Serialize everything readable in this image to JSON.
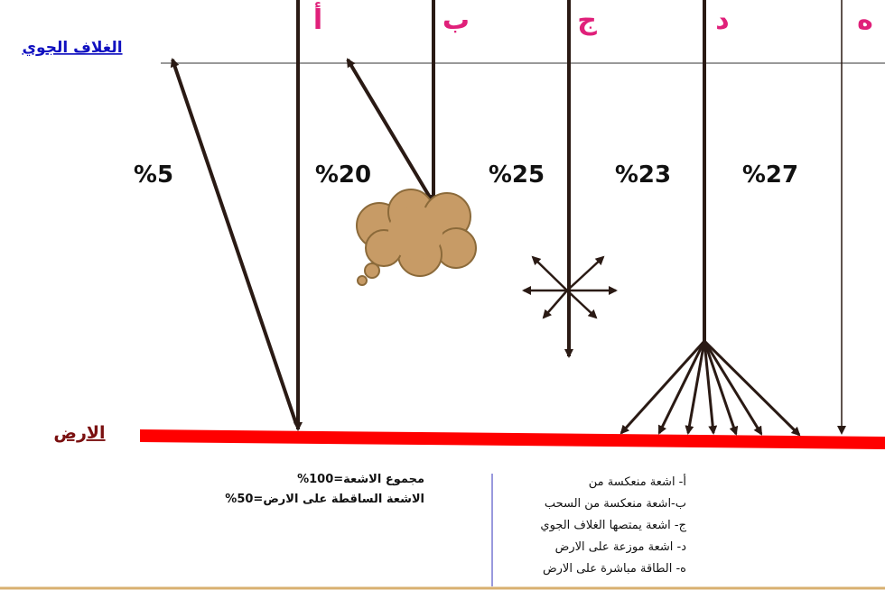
{
  "labels": {
    "atmosphere": "الغلاف الجوي",
    "earth": "الارض"
  },
  "rays": [
    {
      "letter": "أ",
      "percent": "%5"
    },
    {
      "letter": "ب",
      "percent": "%20"
    },
    {
      "letter": "ج",
      "percent": "%25"
    },
    {
      "letter": "د",
      "percent": "%23"
    },
    {
      "letter": "ه",
      "percent": "%27"
    }
  ],
  "totals": [
    "مجموع الاشعة=100%",
    "الاشعة الساقطة على الارض=50%"
  ],
  "legend": [
    "أ- اشعة منعكسة من",
    "ب-اشعة منعكسة من السحب",
    "ج- اشعة يمتصها الغلاف الجوي",
    "د- اشعة موزعة على الارض",
    "ه- الطاقة مباشرة على الارض"
  ]
}
